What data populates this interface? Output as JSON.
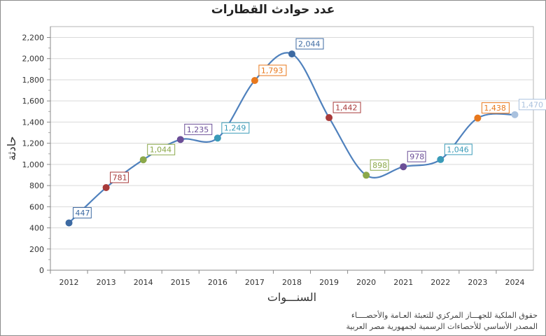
{
  "chart_data": {
    "type": "line",
    "title": "عدد حوادث القطارات",
    "xlabel": "السنـــوات",
    "ylabel": "حادثة",
    "categories": [
      "2012",
      "2013",
      "2014",
      "2015",
      "2016",
      "2017",
      "2018",
      "2019",
      "2020",
      "2021",
      "2022",
      "2023",
      "2024"
    ],
    "values": [
      447,
      781,
      1044,
      1235,
      1249,
      1793,
      2044,
      1442,
      898,
      978,
      1046,
      1438,
      1470
    ],
    "labels": [
      "447",
      "781",
      "1,044",
      "1,235",
      "1,249",
      "1,793",
      "2,044",
      "1,442",
      "898",
      "978",
      "1,046",
      "1,438",
      "1,470"
    ],
    "point_colors": [
      "#3d6aa2",
      "#a83a3a",
      "#8ba84a",
      "#6b4e97",
      "#3a9bb8",
      "#e8781c",
      "#3d6aa2",
      "#a83a3a",
      "#8ba84a",
      "#6b4e97",
      "#3a9bb8",
      "#e8781c",
      "#a9c1de"
    ],
    "line_color": "#4f81bd",
    "ylim": [
      0,
      2200
    ],
    "yticks": [
      0,
      200,
      400,
      600,
      800,
      1000,
      1200,
      1400,
      1600,
      1800,
      2000,
      2200
    ],
    "ytick_labels": [
      "0",
      "200",
      "400",
      "600",
      "800",
      "1,000",
      "1,200",
      "1,400",
      "1,600",
      "1,800",
      "2,000",
      "2,200"
    ],
    "grid": true,
    "smooth": true
  },
  "footer": {
    "line1": "حقوق الملكية للجهـــاز المركزي للتعبئة العـامة والأحصــــاء",
    "line2": "المصدر الأساسي للأحصاءات الرسمية لجمهورية مصر العربية"
  }
}
